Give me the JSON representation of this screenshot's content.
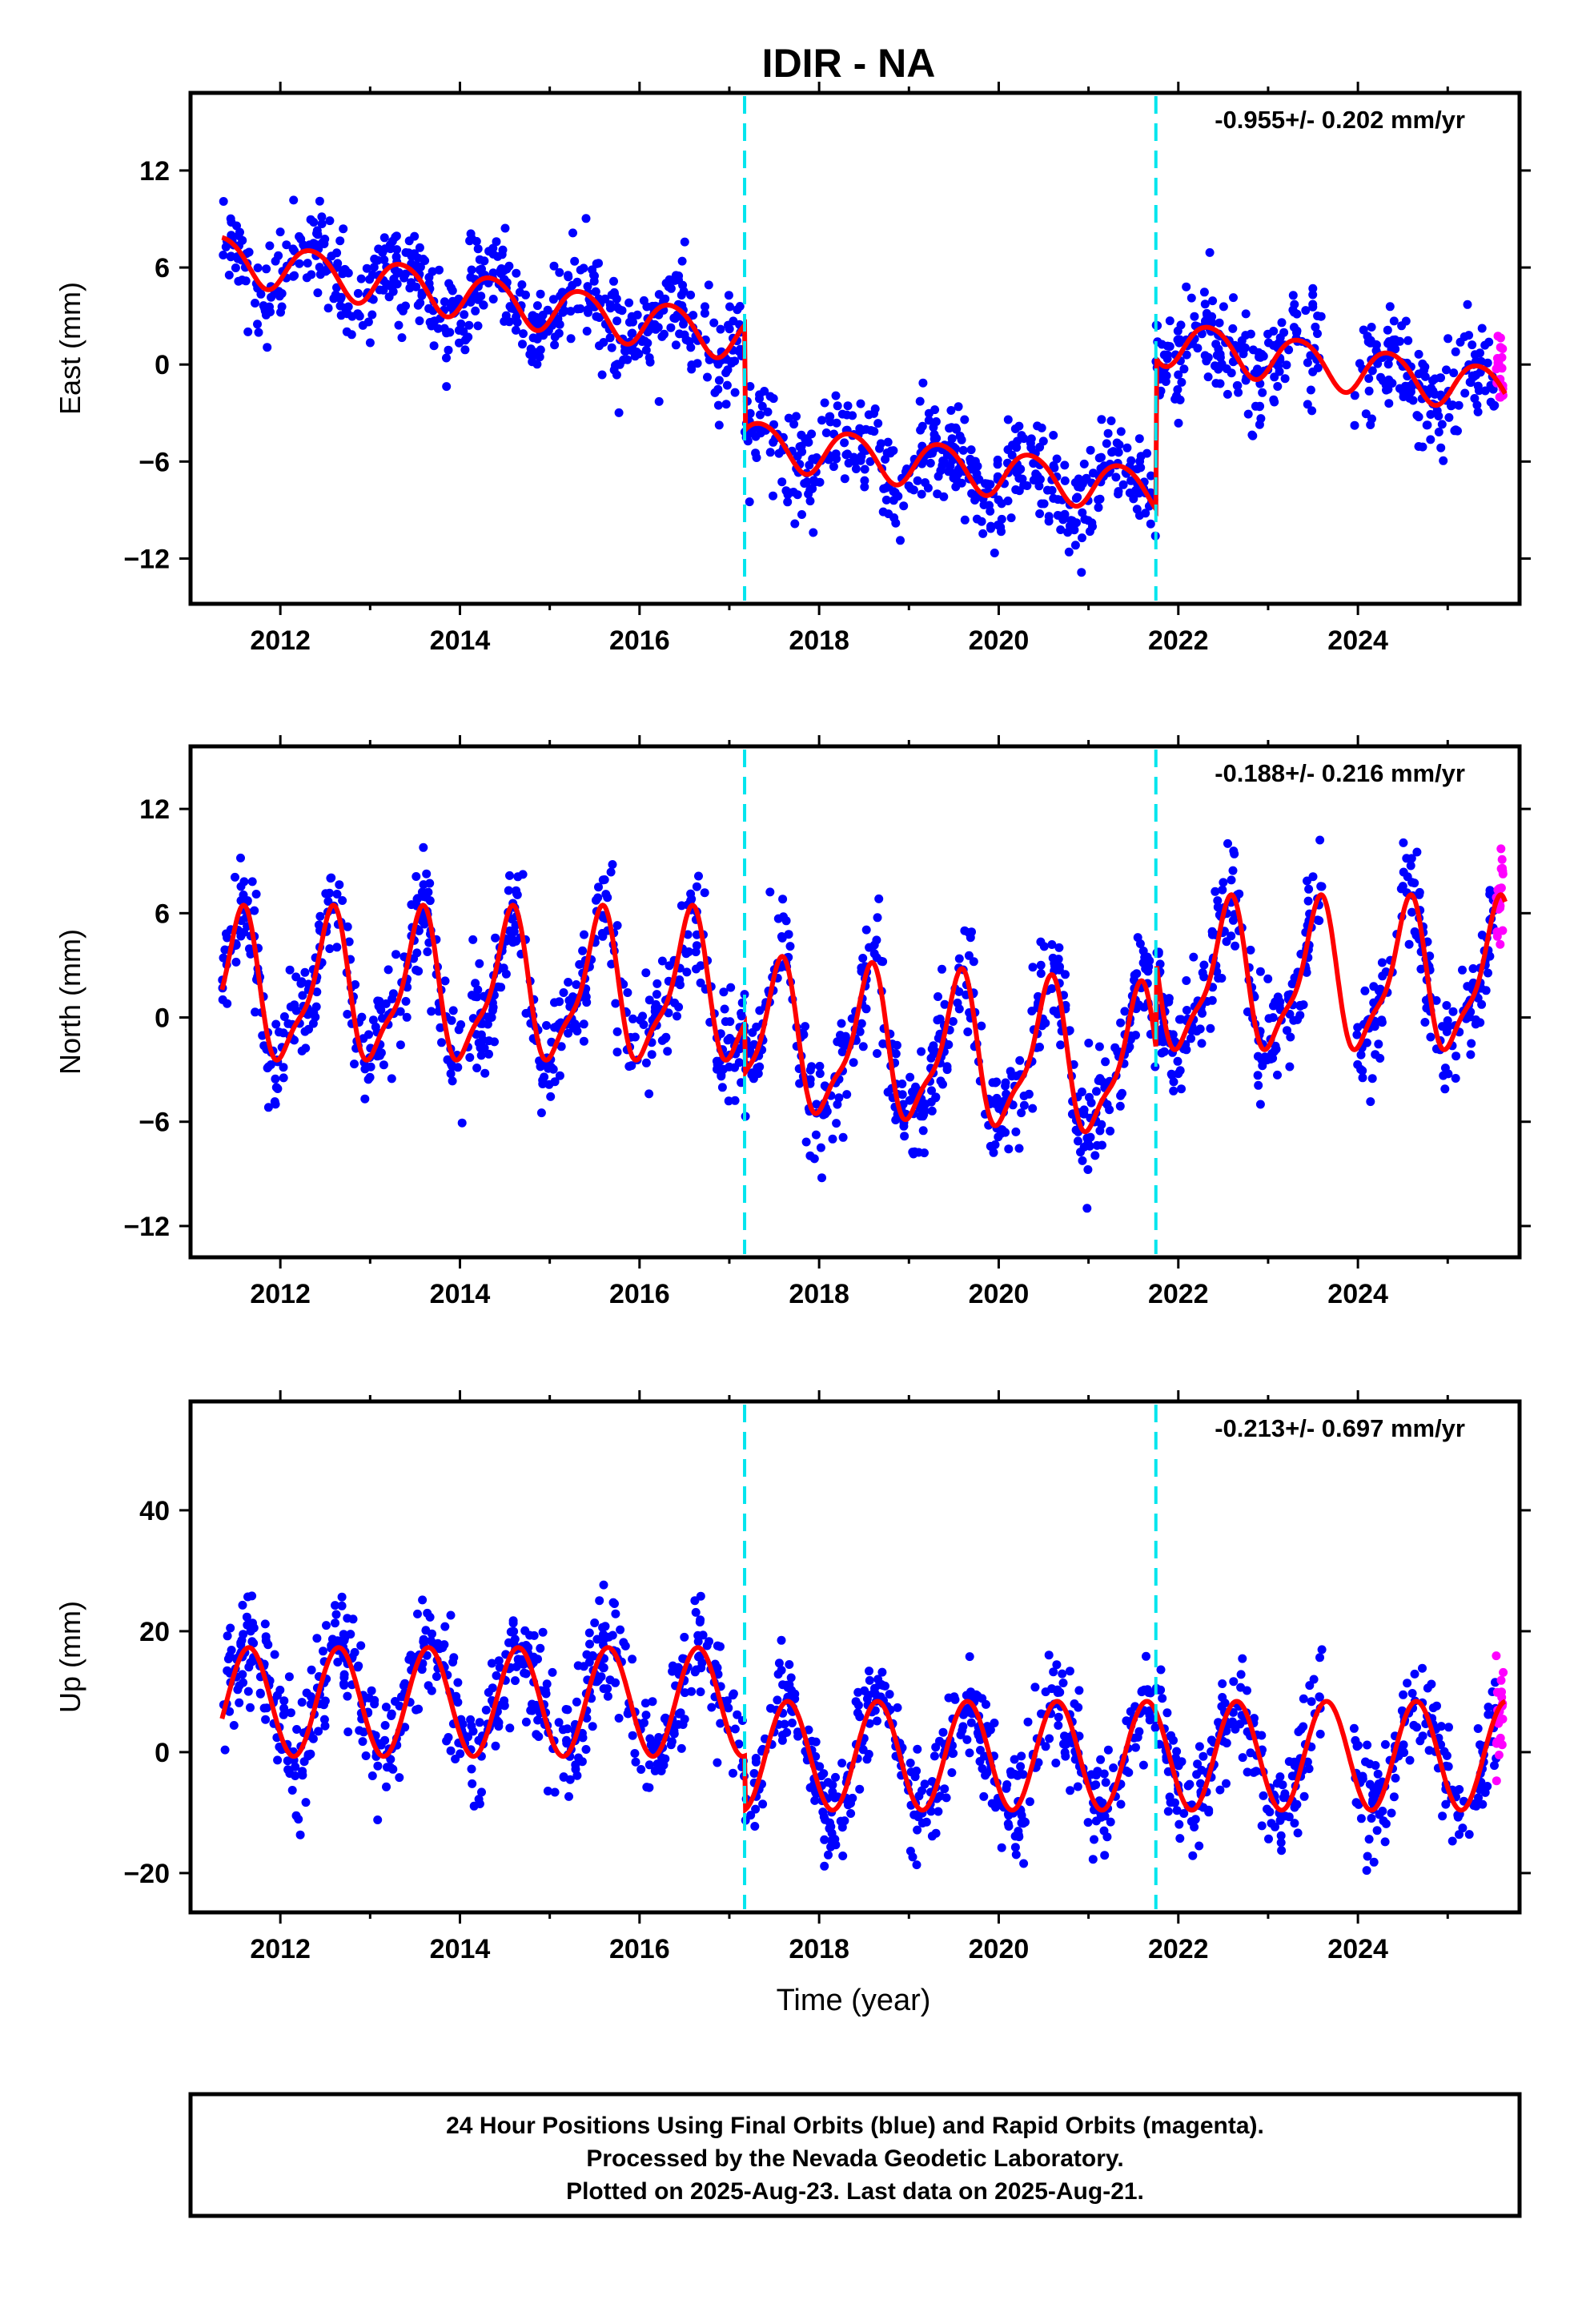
{
  "chart_data": {
    "type": "scatter",
    "title": "IDIR - NA",
    "xlabel": "Time (year)",
    "xlim": [
      2011.0,
      2025.8
    ],
    "xticks": [
      2012,
      2014,
      2016,
      2018,
      2020,
      2022,
      2024
    ],
    "xtick_labels": [
      "2012",
      "2014",
      "2016",
      "2018",
      "2020",
      "2022",
      "2024"
    ],
    "event_lines": [
      2017.17,
      2021.75
    ],
    "colors": {
      "final": "#0000ff",
      "rapid": "#ff00ff",
      "model": "#ff0000",
      "event": "#00e5ee"
    },
    "data_start": 2011.35,
    "data_end": 2025.64,
    "panels": [
      {
        "ylabel": "East (mm)",
        "rate_label": "-0.955+/- 0.202 mm/yr",
        "ylim": [
          -14.8,
          16.8
        ],
        "yticks": [
          -12,
          -6,
          0,
          6,
          12
        ],
        "ytick_labels": [
          "−12",
          "−6",
          "0",
          "6",
          "12"
        ],
        "annual_amplitude": 1.4,
        "annual_phase": 0.1,
        "semiannual_amplitude": 0.15,
        "noise_sd": 1.5,
        "segments": [
          {
            "from": 2011.35,
            "to": 2017.17,
            "start": 6.6,
            "end": 1.7
          },
          {
            "from": 2017.17,
            "to": 2021.75,
            "start": -4.8,
            "end": -7.8
          },
          {
            "from": 2021.75,
            "to": 2025.64,
            "start": 1.5,
            "end": -1.6
          }
        ]
      },
      {
        "ylabel": "North (mm)",
        "rate_label": "-0.188+/- 0.216 mm/yr",
        "ylim": [
          -13.8,
          15.6
        ],
        "yticks": [
          -12,
          -6,
          0,
          6,
          12
        ],
        "ytick_labels": [
          "−12",
          "−6",
          "0",
          "6",
          "12"
        ],
        "annual_amplitude": 4.0,
        "annual_phase": 0.3,
        "semiannual_amplitude": 1.2,
        "noise_sd": 1.6,
        "segments": [
          {
            "from": 2011.35,
            "to": 2017.17,
            "start": 1.5,
            "end": 1.5
          },
          {
            "from": 2017.17,
            "to": 2021.75,
            "start": -1.3,
            "end": -2.9
          },
          {
            "from": 2021.75,
            "to": 2025.64,
            "start": 2.1,
            "end": 2.1
          }
        ]
      },
      {
        "ylabel": "Up (mm)",
        "rate_label": "-0.213+/- 0.697 mm/yr",
        "ylim": [
          -26.5,
          58.0
        ],
        "yticks": [
          -20,
          0,
          20,
          40
        ],
        "ytick_labels": [
          "−20",
          "0",
          "20",
          "40"
        ],
        "annual_amplitude": 9.0,
        "annual_phase": 0.4,
        "semiannual_amplitude": 0.0,
        "noise_sd": 4.5,
        "segments": [
          {
            "from": 2011.35,
            "to": 2017.17,
            "start": 8.3,
            "end": 8.3
          },
          {
            "from": 2017.17,
            "to": 2021.75,
            "start": -0.6,
            "end": -0.6
          },
          {
            "from": 2021.75,
            "to": 2025.64,
            "start": -0.6,
            "end": -0.6
          }
        ]
      }
    ]
  },
  "footer": {
    "line1": "24 Hour Positions Using Final Orbits (blue) and Rapid Orbits (magenta).",
    "line2": "Processed by the Nevada Geodetic Laboratory.",
    "line3": "Plotted on 2025-Aug-23. Last data on 2025-Aug-21."
  }
}
